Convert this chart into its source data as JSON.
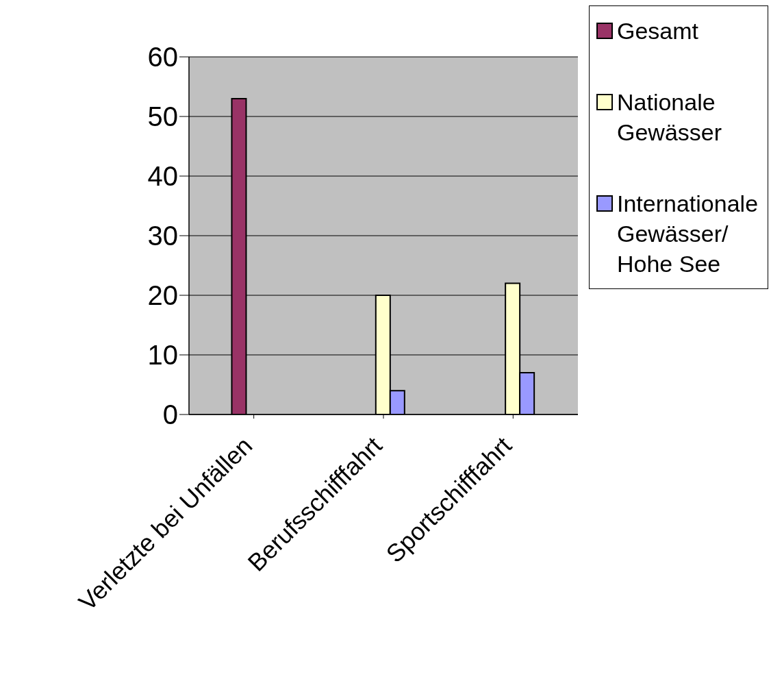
{
  "chart_data": {
    "type": "bar",
    "categories": [
      "Verletzte bei Unfällen",
      "Berufsschifffahrt",
      "Sportschifffahrt"
    ],
    "series": [
      {
        "name": "Gesamt",
        "color": "#993366",
        "values": [
          53,
          null,
          null
        ]
      },
      {
        "name": "Nationale Gewässer",
        "color": "#ffffcc",
        "values": [
          null,
          20,
          22
        ]
      },
      {
        "name": "Internationale Gewässer/ Hohe See",
        "color": "#9999ff",
        "values": [
          null,
          4,
          7
        ]
      }
    ],
    "ylim": [
      0,
      60
    ],
    "yticks": [
      0,
      10,
      20,
      30,
      40,
      50,
      60
    ],
    "grid": "y",
    "legend": "top right"
  }
}
